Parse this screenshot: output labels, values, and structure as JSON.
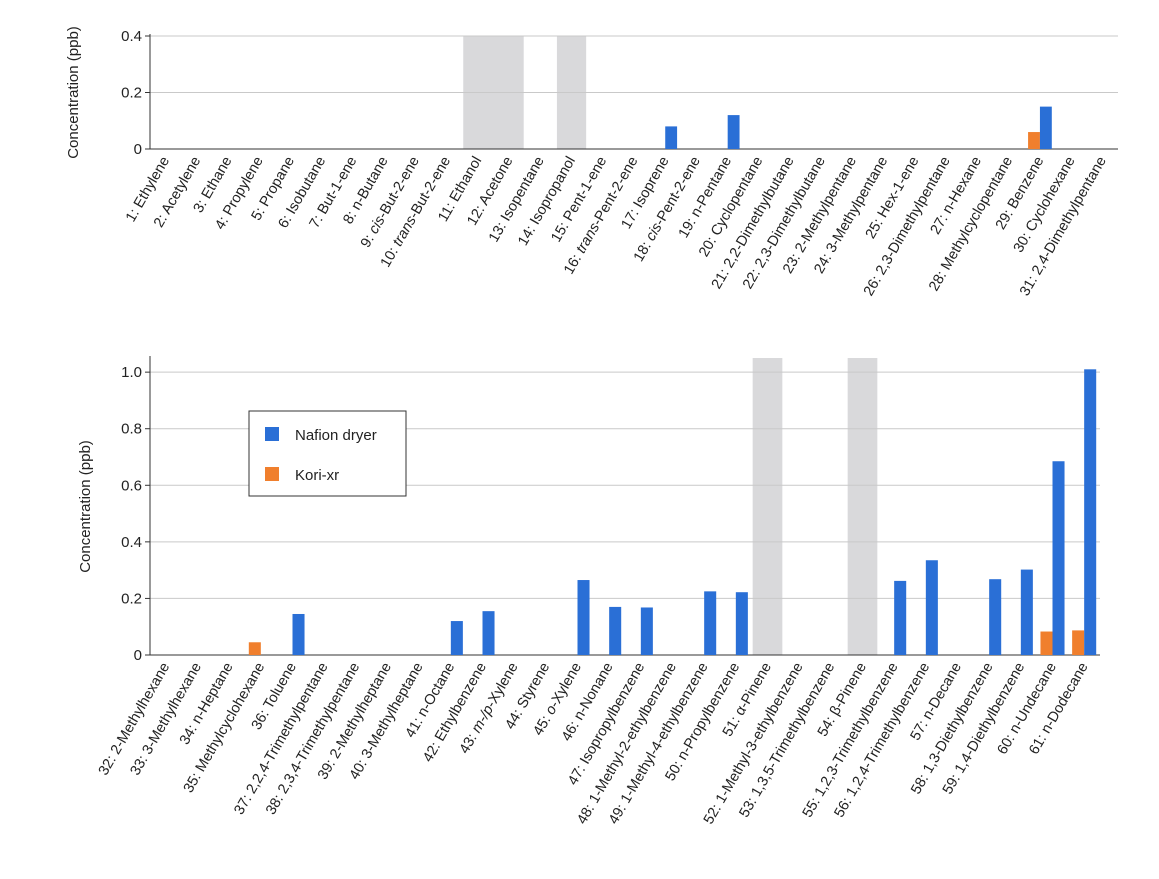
{
  "chart_data": [
    {
      "type": "bar",
      "ylabel": "Concentration (ppb)",
      "ylim": [
        0,
        0.4
      ],
      "yticks": [
        "0",
        "0.2",
        "0.4"
      ],
      "grid": "horizontal",
      "categories": [
        [
          {
            "t": "1: Ethylene"
          }
        ],
        [
          {
            "t": "2: Acetylene"
          }
        ],
        [
          {
            "t": "3: Ethane"
          }
        ],
        [
          {
            "t": "4: Propylene"
          }
        ],
        [
          {
            "t": "5: Propane"
          }
        ],
        [
          {
            "t": "6: Isobutane"
          }
        ],
        [
          {
            "t": "7: But-1-ene"
          }
        ],
        [
          {
            "t": "8: n-Butane"
          }
        ],
        [
          {
            "t": "9: "
          },
          {
            "t": "cis",
            "i": true
          },
          {
            "t": "-But-2-ene"
          }
        ],
        [
          {
            "t": "10: "
          },
          {
            "t": "trans",
            "i": true
          },
          {
            "t": "-But-2-ene"
          }
        ],
        [
          {
            "t": "11: Ethanol"
          }
        ],
        [
          {
            "t": "12: Acetone"
          }
        ],
        [
          {
            "t": "13: Isopentane"
          }
        ],
        [
          {
            "t": "14: Isopropanol"
          }
        ],
        [
          {
            "t": "15: Pent-1-ene"
          }
        ],
        [
          {
            "t": "16: "
          },
          {
            "t": "trans",
            "i": true
          },
          {
            "t": "-Pent-2-ene"
          }
        ],
        [
          {
            "t": "17: Isoprene"
          }
        ],
        [
          {
            "t": "18: "
          },
          {
            "t": "cis",
            "i": true
          },
          {
            "t": "-Pent-2-ene"
          }
        ],
        [
          {
            "t": "19: n-Pentane"
          }
        ],
        [
          {
            "t": "20: Cyclopentane"
          }
        ],
        [
          {
            "t": "21: 2,2-Dimethylbutane"
          }
        ],
        [
          {
            "t": "22: 2,3-Dimethylbutane"
          }
        ],
        [
          {
            "t": "23: 2-Methylpentane"
          }
        ],
        [
          {
            "t": "24: 3-Methylpentane"
          }
        ],
        [
          {
            "t": "25: Hex-1-ene"
          }
        ],
        [
          {
            "t": "26: 2,3-Dimethylpentane"
          }
        ],
        [
          {
            "t": "27: n-Hexane"
          }
        ],
        [
          {
            "t": "28: Methylcyclopentane"
          }
        ],
        [
          {
            "t": "29: Benzene"
          }
        ],
        [
          {
            "t": "30: Cyclohexane"
          }
        ],
        [
          {
            "t": "31: 2,4-Dimethylpentane"
          }
        ]
      ],
      "series": [
        {
          "name": "Nafion dryer",
          "values": [
            0,
            0,
            0,
            0,
            0,
            0,
            0,
            0,
            0,
            0,
            0,
            0,
            0,
            0,
            0,
            0,
            0.08,
            0,
            0.12,
            0,
            0,
            0,
            0,
            0,
            0,
            0,
            0,
            0,
            0.15,
            0,
            0
          ]
        },
        {
          "name": "Kori-xr",
          "values": [
            0,
            0,
            0,
            0,
            0,
            0,
            0,
            0,
            0,
            0,
            0,
            0,
            0,
            0,
            0,
            0,
            0,
            0,
            0,
            0,
            0,
            0,
            0,
            0,
            0,
            0,
            0,
            0,
            0.06,
            0,
            0
          ]
        }
      ],
      "shaded_ranges": [
        [
          10,
          11
        ],
        [
          13,
          13
        ]
      ]
    },
    {
      "type": "bar",
      "ylabel": "Concentration (ppb)",
      "ylim": [
        0,
        1.05
      ],
      "yticks": [
        "0",
        "0.2",
        "0.4",
        "0.6",
        "0.8",
        "1.0"
      ],
      "grid": "horizontal",
      "legend_position": "upper-left",
      "categories": [
        [
          {
            "t": "32: 2-Methylhexane"
          }
        ],
        [
          {
            "t": "33: 3-Methylhexane"
          }
        ],
        [
          {
            "t": "34: n-Heptane"
          }
        ],
        [
          {
            "t": "35: Methylcyclohexane"
          }
        ],
        [
          {
            "t": "36: Toluene"
          }
        ],
        [
          {
            "t": "37: 2,2,4-Trimethylpentane"
          }
        ],
        [
          {
            "t": "38: 2,3,4-Trimethylpentane"
          }
        ],
        [
          {
            "t": "39: 2-Methylheptane"
          }
        ],
        [
          {
            "t": "40: 3-Methylheptane"
          }
        ],
        [
          {
            "t": "41: n-Octane"
          }
        ],
        [
          {
            "t": "42: Ethylbenzene"
          }
        ],
        [
          {
            "t": "43: "
          },
          {
            "t": "m-/p",
            "i": true
          },
          {
            "t": "-Xylene"
          }
        ],
        [
          {
            "t": "44: Styrene"
          }
        ],
        [
          {
            "t": "45: "
          },
          {
            "t": "o",
            "i": true
          },
          {
            "t": "-Xylene"
          }
        ],
        [
          {
            "t": "46: n-Nonane"
          }
        ],
        [
          {
            "t": "47: Isopropylbenzene"
          }
        ],
        [
          {
            "t": "48: 1-Methyl-2-ethylbenzene"
          }
        ],
        [
          {
            "t": "49: 1-Methyl-4-ethylbenzene"
          }
        ],
        [
          {
            "t": "50: n-Propylbenzene"
          }
        ],
        [
          {
            "t": "51: α-Pinene"
          }
        ],
        [
          {
            "t": "52: 1-Methyl-3-ethylbenzene"
          }
        ],
        [
          {
            "t": "53: 1,3,5-Trimethylbenzene"
          }
        ],
        [
          {
            "t": "54: β-Pinene"
          }
        ],
        [
          {
            "t": "55: 1,2,3-Trimethylbenzene"
          }
        ],
        [
          {
            "t": "56: 1,2,4-Trimethylbenzene"
          }
        ],
        [
          {
            "t": "57: n-Decane"
          }
        ],
        [
          {
            "t": "58: 1,3-Diethylbenzene"
          }
        ],
        [
          {
            "t": "59: 1,4-Diethylbenzene"
          }
        ],
        [
          {
            "t": "60: n-Undecane"
          }
        ],
        [
          {
            "t": "61: n-Dodecane"
          }
        ]
      ],
      "series": [
        {
          "name": "Nafion dryer",
          "values": [
            0,
            0,
            0,
            0,
            0.145,
            0,
            0,
            0,
            0,
            0.12,
            0.155,
            0,
            0,
            0.265,
            0.17,
            0.168,
            0,
            0.225,
            0.222,
            0,
            0,
            0,
            0,
            0.262,
            0.335,
            0,
            0.268,
            0.302,
            0.685,
            1.01
          ]
        },
        {
          "name": "Kori-xr",
          "values": [
            0,
            0,
            0,
            0.045,
            0,
            0,
            0,
            0,
            0,
            0,
            0,
            0,
            0,
            0,
            0,
            0,
            0,
            0,
            0,
            0,
            0,
            0,
            0,
            0,
            0,
            0,
            0,
            0,
            0.083,
            0.087
          ]
        }
      ],
      "shaded_ranges": [
        [
          19,
          19
        ],
        [
          22,
          22
        ]
      ]
    }
  ],
  "colors": {
    "nafion": "#2a6fd6",
    "kori": "#f07f2d",
    "shade": "#d9d9db",
    "grid": "#c9c9c9",
    "axis": "#333333"
  },
  "legend": {
    "items": [
      {
        "label": "Nafion dryer",
        "color": "#2a6fd6"
      },
      {
        "label": "Kori-xr",
        "color": "#f07f2d"
      }
    ]
  }
}
